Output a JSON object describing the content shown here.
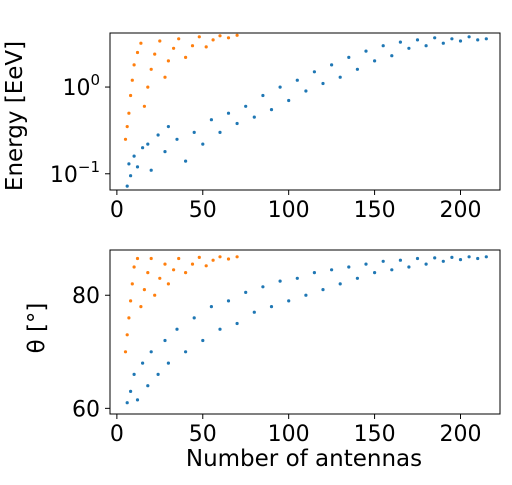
{
  "colors": {
    "series_blue": "#1f77b4",
    "series_orange": "#ff7f0e",
    "axis": "#000000",
    "background": "#ffffff"
  },
  "chart_data": [
    {
      "type": "scatter",
      "title": "",
      "xlabel": "",
      "ylabel": "Energy [EeV]",
      "xlim": [
        -4,
        223
      ],
      "ylim": [
        0.065,
        4.2
      ],
      "yscale": "log",
      "grid": false,
      "legend": "none",
      "x_ticks": [
        0,
        50,
        100,
        150,
        200
      ],
      "x_tick_labels": [
        "0",
        "50",
        "100",
        "150",
        "200"
      ],
      "y_ticks": [
        0.1,
        1
      ],
      "y_tick_labels": [
        {
          "base": "10",
          "exp": "−1"
        },
        {
          "base": "10",
          "exp": "0"
        }
      ],
      "series": [
        {
          "color": "#1f77b4",
          "points": [
            [
              6,
              0.072
            ],
            [
              8,
              0.095
            ],
            [
              7,
              0.13
            ],
            [
              10,
              0.16
            ],
            [
              12,
              0.12
            ],
            [
              15,
              0.2
            ],
            [
              18,
              0.22
            ],
            [
              20,
              0.11
            ],
            [
              24,
              0.28
            ],
            [
              28,
              0.18
            ],
            [
              30,
              0.35
            ],
            [
              35,
              0.25
            ],
            [
              40,
              0.14
            ],
            [
              45,
              0.3
            ],
            [
              50,
              0.22
            ],
            [
              55,
              0.42
            ],
            [
              60,
              0.3
            ],
            [
              65,
              0.5
            ],
            [
              70,
              0.38
            ],
            [
              75,
              0.6
            ],
            [
              80,
              0.45
            ],
            [
              85,
              0.8
            ],
            [
              90,
              0.55
            ],
            [
              95,
              1.0
            ],
            [
              100,
              0.7
            ],
            [
              105,
              1.2
            ],
            [
              110,
              0.9
            ],
            [
              115,
              1.5
            ],
            [
              120,
              1.1
            ],
            [
              125,
              1.8
            ],
            [
              130,
              1.3
            ],
            [
              135,
              2.2
            ],
            [
              140,
              1.6
            ],
            [
              145,
              2.6
            ],
            [
              150,
              2.0
            ],
            [
              155,
              3.0
            ],
            [
              160,
              2.3
            ],
            [
              165,
              3.3
            ],
            [
              170,
              2.8
            ],
            [
              175,
              3.5
            ],
            [
              180,
              3.0
            ],
            [
              185,
              3.7
            ],
            [
              190,
              3.2
            ],
            [
              195,
              3.6
            ],
            [
              200,
              3.4
            ],
            [
              205,
              3.8
            ],
            [
              210,
              3.5
            ],
            [
              215,
              3.6
            ]
          ]
        },
        {
          "color": "#ff7f0e",
          "points": [
            [
              5,
              0.25
            ],
            [
              6,
              0.35
            ],
            [
              7,
              0.5
            ],
            [
              8,
              0.8
            ],
            [
              9,
              1.2
            ],
            [
              10,
              1.8
            ],
            [
              12,
              2.5
            ],
            [
              14,
              3.2
            ],
            [
              16,
              0.6
            ],
            [
              18,
              1.0
            ],
            [
              20,
              1.6
            ],
            [
              22,
              2.4
            ],
            [
              25,
              3.4
            ],
            [
              28,
              1.3
            ],
            [
              30,
              2.0
            ],
            [
              33,
              2.8
            ],
            [
              36,
              3.6
            ],
            [
              40,
              2.2
            ],
            [
              44,
              3.0
            ],
            [
              48,
              3.8
            ],
            [
              52,
              2.9
            ],
            [
              56,
              3.5
            ],
            [
              60,
              3.9
            ],
            [
              65,
              3.7
            ],
            [
              70,
              3.95
            ]
          ]
        }
      ]
    },
    {
      "type": "scatter",
      "title": "",
      "xlabel": "Number of antennas",
      "ylabel": "θ [°]",
      "xlim": [
        -4,
        223
      ],
      "ylim": [
        59,
        88
      ],
      "yscale": "linear",
      "grid": false,
      "legend": "none",
      "x_ticks": [
        0,
        50,
        100,
        150,
        200
      ],
      "x_tick_labels": [
        "0",
        "50",
        "100",
        "150",
        "200"
      ],
      "y_ticks": [
        60,
        80
      ],
      "y_tick_labels": [
        "60",
        "80"
      ],
      "series": [
        {
          "color": "#1f77b4",
          "points": [
            [
              6,
              61
            ],
            [
              8,
              63
            ],
            [
              10,
              66
            ],
            [
              12,
              61.5
            ],
            [
              15,
              68
            ],
            [
              18,
              64
            ],
            [
              20,
              70
            ],
            [
              24,
              66
            ],
            [
              28,
              72
            ],
            [
              30,
              68
            ],
            [
              35,
              74
            ],
            [
              40,
              70
            ],
            [
              45,
              76
            ],
            [
              50,
              72
            ],
            [
              55,
              78
            ],
            [
              60,
              74
            ],
            [
              65,
              79
            ],
            [
              70,
              75
            ],
            [
              75,
              80.5
            ],
            [
              80,
              77
            ],
            [
              85,
              81.5
            ],
            [
              90,
              78
            ],
            [
              95,
              82.5
            ],
            [
              100,
              79
            ],
            [
              105,
              83
            ],
            [
              110,
              80
            ],
            [
              115,
              84
            ],
            [
              120,
              81
            ],
            [
              125,
              84.5
            ],
            [
              130,
              82
            ],
            [
              135,
              85
            ],
            [
              140,
              83
            ],
            [
              145,
              85.5
            ],
            [
              150,
              84
            ],
            [
              155,
              86
            ],
            [
              160,
              84.5
            ],
            [
              165,
              86.2
            ],
            [
              170,
              85
            ],
            [
              175,
              86.5
            ],
            [
              180,
              85.5
            ],
            [
              185,
              86.6
            ],
            [
              190,
              86
            ],
            [
              195,
              86.7
            ],
            [
              200,
              86.3
            ],
            [
              205,
              86.8
            ],
            [
              210,
              86.5
            ],
            [
              215,
              86.8
            ]
          ]
        },
        {
          "color": "#ff7f0e",
          "points": [
            [
              5,
              70
            ],
            [
              6,
              73
            ],
            [
              7,
              76
            ],
            [
              8,
              79
            ],
            [
              9,
              82
            ],
            [
              10,
              85
            ],
            [
              12,
              86.5
            ],
            [
              14,
              78
            ],
            [
              16,
              81
            ],
            [
              18,
              84
            ],
            [
              20,
              86.5
            ],
            [
              22,
              80
            ],
            [
              25,
              83
            ],
            [
              28,
              85.5
            ],
            [
              30,
              82
            ],
            [
              33,
              84.5
            ],
            [
              36,
              86.5
            ],
            [
              40,
              84
            ],
            [
              44,
              85.5
            ],
            [
              48,
              86.7
            ],
            [
              52,
              85.2
            ],
            [
              56,
              86.2
            ],
            [
              60,
              86.8
            ],
            [
              65,
              86.4
            ],
            [
              70,
              86.8
            ]
          ]
        }
      ]
    }
  ]
}
